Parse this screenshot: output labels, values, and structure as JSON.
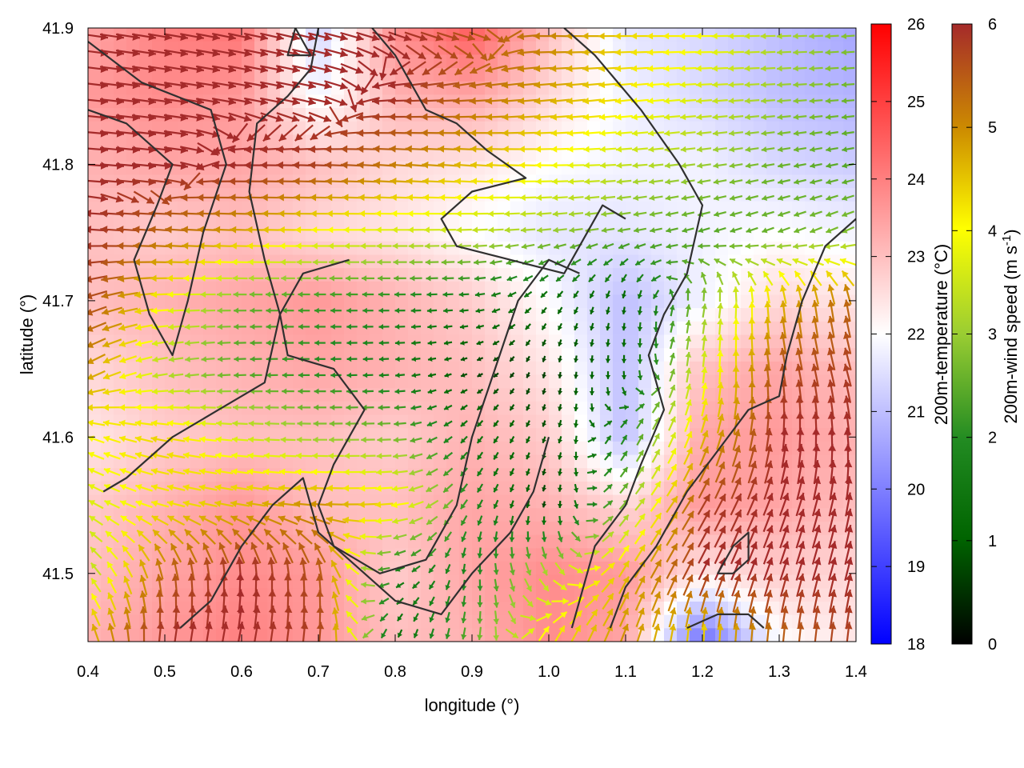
{
  "chart_data": {
    "type": "heatmap",
    "title": "",
    "xlabel": "longitude (°)",
    "ylabel": "latitude (°)",
    "xlim": [
      0.4,
      1.4
    ],
    "ylim": [
      41.45,
      41.9
    ],
    "xticks": [
      0.4,
      0.5,
      0.6,
      0.7,
      0.8,
      0.9,
      1.0,
      1.1,
      1.2,
      1.3,
      1.4
    ],
    "xtick_labels": [
      "0.4",
      "0.5",
      "0.6",
      "0.7",
      "0.8",
      "0.9",
      "1.0",
      "1.1",
      "1.2",
      "1.3",
      "1.4"
    ],
    "yticks": [
      41.5,
      41.6,
      41.7,
      41.8,
      41.9
    ],
    "ytick_labels": [
      "41.5",
      "41.6",
      "41.7",
      "41.8",
      "41.9"
    ],
    "temperature": {
      "label": "200m-temperature (°C)",
      "range": [
        18,
        26
      ],
      "ticks": [
        18,
        19,
        20,
        21,
        22,
        23,
        24,
        25,
        26
      ],
      "tick_labels": [
        "18",
        "19",
        "20",
        "21",
        "22",
        "23",
        "24",
        "25",
        "26"
      ],
      "colormap": [
        "#0000ff",
        "#ffffff",
        "#ff0000"
      ],
      "field": {
        "lon": [
          0.4,
          0.5,
          0.6,
          0.7,
          0.8,
          0.9,
          1.0,
          1.1,
          1.2,
          1.3,
          1.4
        ],
        "lat": [
          41.9,
          41.85,
          41.8,
          41.75,
          41.7,
          41.65,
          41.6,
          41.55,
          41.5,
          41.45
        ],
        "values": [
          [
            23.4,
            24.0,
            24.2,
            21.2,
            23.8,
            24.6,
            23.0,
            21.6,
            21.4,
            21.0,
            20.6
          ],
          [
            23.6,
            23.8,
            23.6,
            21.8,
            23.2,
            23.4,
            22.6,
            21.8,
            21.4,
            21.0,
            20.8
          ],
          [
            23.2,
            23.4,
            23.4,
            23.0,
            22.6,
            22.4,
            22.0,
            21.8,
            21.8,
            21.4,
            21.2
          ],
          [
            23.0,
            22.8,
            23.0,
            22.6,
            22.4,
            22.0,
            21.6,
            21.6,
            21.8,
            22.0,
            21.8
          ],
          [
            23.0,
            23.2,
            23.4,
            23.6,
            23.2,
            22.8,
            22.0,
            21.0,
            21.8,
            22.6,
            22.4
          ],
          [
            22.6,
            23.0,
            23.2,
            23.4,
            23.2,
            23.0,
            22.4,
            21.0,
            23.0,
            23.4,
            23.0
          ],
          [
            22.4,
            22.8,
            23.0,
            23.0,
            22.8,
            23.2,
            22.8,
            21.0,
            23.4,
            23.6,
            23.2
          ],
          [
            22.8,
            23.2,
            23.6,
            23.0,
            23.0,
            23.4,
            23.2,
            22.6,
            23.6,
            23.4,
            23.0
          ],
          [
            23.0,
            23.4,
            23.8,
            23.6,
            22.8,
            23.4,
            23.8,
            23.6,
            22.4,
            22.8,
            22.6
          ],
          [
            23.2,
            23.6,
            24.0,
            23.6,
            23.0,
            23.2,
            23.8,
            23.4,
            19.6,
            22.0,
            22.4
          ]
        ]
      }
    },
    "wind_speed": {
      "label": "200m-wind speed (m s⁻¹)",
      "label_main": "200m-wind speed (m s",
      "label_exp": "-1",
      "label_close": ")",
      "range": [
        0,
        6
      ],
      "ticks": [
        0,
        1,
        2,
        3,
        4,
        5,
        6
      ],
      "tick_labels": [
        "0",
        "1",
        "2",
        "3",
        "4",
        "5",
        "6"
      ],
      "colormap": [
        "#000000",
        "#006400",
        "#228b22",
        "#9acd32",
        "#ffff00",
        "#cd8c00",
        "#a52a2a"
      ],
      "field": {
        "lon": [
          0.4,
          0.5,
          0.6,
          0.7,
          0.8,
          0.9,
          1.0,
          1.1,
          1.2,
          1.3,
          1.4
        ],
        "lat": [
          41.9,
          41.85,
          41.8,
          41.75,
          41.7,
          41.65,
          41.6,
          41.55,
          41.5,
          41.45
        ],
        "speed": [
          [
            6.0,
            6.0,
            6.0,
            6.0,
            6.0,
            5.6,
            5.2,
            4.4,
            4.0,
            3.2,
            2.8
          ],
          [
            6.0,
            6.0,
            6.0,
            6.0,
            6.0,
            5.4,
            4.8,
            4.2,
            3.6,
            3.0,
            2.6
          ],
          [
            6.0,
            6.0,
            6.0,
            5.8,
            5.2,
            4.6,
            4.0,
            3.4,
            3.0,
            2.6,
            2.4
          ],
          [
            6.0,
            5.4,
            4.8,
            4.0,
            3.6,
            3.4,
            3.0,
            2.6,
            2.4,
            2.6,
            2.8
          ],
          [
            5.8,
            4.0,
            2.6,
            2.2,
            2.0,
            1.6,
            1.2,
            1.0,
            2.8,
            4.6,
            5.4
          ],
          [
            5.0,
            3.2,
            2.4,
            2.0,
            1.6,
            0.6,
            0.6,
            1.2,
            3.6,
            5.6,
            5.8
          ],
          [
            4.0,
            4.4,
            3.6,
            3.0,
            2.8,
            1.4,
            0.8,
            2.0,
            4.6,
            6.0,
            6.0
          ],
          [
            3.6,
            4.2,
            4.6,
            5.0,
            4.2,
            2.0,
            0.6,
            2.8,
            5.8,
            6.0,
            6.0
          ],
          [
            3.2,
            5.4,
            6.0,
            5.6,
            1.6,
            1.8,
            3.4,
            4.6,
            6.0,
            6.0,
            6.0
          ],
          [
            4.8,
            6.0,
            6.0,
            5.8,
            1.2,
            2.6,
            4.2,
            5.0,
            4.2,
            5.4,
            5.8
          ]
        ],
        "direction_deg": [
          [
            -8,
            -10,
            -12,
            -14,
            -16,
            -14,
            178,
            180,
            180,
            182,
            184
          ],
          [
            -6,
            -8,
            -10,
            -12,
            182,
            184,
            186,
            186,
            184,
            184,
            184
          ],
          [
            -4,
            -6,
            180,
            178,
            176,
            176,
            180,
            184,
            188,
            190,
            192
          ],
          [
            176,
            176,
            178,
            180,
            180,
            182,
            186,
            190,
            196,
            200,
            204
          ],
          [
            200,
            182,
            180,
            180,
            180,
            184,
            230,
            260,
            80,
            96,
            100
          ],
          [
            210,
            190,
            182,
            180,
            184,
            200,
            260,
            270,
            84,
            100,
            106
          ],
          [
            160,
            170,
            176,
            180,
            182,
            230,
            250,
            60,
            70,
            84,
            96
          ],
          [
            150,
            165,
            170,
            176,
            186,
            240,
            260,
            50,
            60,
            70,
            80
          ],
          [
            130,
            100,
            90,
            95,
            200,
            270,
            300,
            60,
            64,
            72,
            76
          ],
          [
            110,
            80,
            78,
            84,
            250,
            260,
            64,
            70,
            90,
            86,
            84
          ]
        ]
      }
    },
    "contours": [
      [
        [
          0.4,
          41.89
        ],
        [
          0.47,
          41.86
        ],
        [
          0.56,
          41.84
        ],
        [
          0.58,
          41.8
        ],
        [
          0.55,
          41.75
        ],
        [
          0.53,
          41.7
        ],
        [
          0.51,
          41.66
        ],
        [
          0.48,
          41.69
        ],
        [
          0.46,
          41.73
        ],
        [
          0.49,
          41.77
        ],
        [
          0.51,
          41.8
        ],
        [
          0.45,
          41.83
        ],
        [
          0.4,
          41.84
        ]
      ],
      [
        [
          0.7,
          41.9
        ],
        [
          0.69,
          41.87
        ],
        [
          0.66,
          41.85
        ],
        [
          0.62,
          41.83
        ],
        [
          0.61,
          41.78
        ],
        [
          0.63,
          41.73
        ],
        [
          0.65,
          41.69
        ],
        [
          0.63,
          41.64
        ],
        [
          0.57,
          41.62
        ],
        [
          0.51,
          41.6
        ],
        [
          0.45,
          41.57
        ],
        [
          0.42,
          41.56
        ]
      ],
      [
        [
          0.77,
          41.9
        ],
        [
          0.8,
          41.88
        ],
        [
          0.84,
          41.84
        ],
        [
          0.88,
          41.83
        ],
        [
          0.92,
          41.81
        ],
        [
          0.97,
          41.79
        ],
        [
          0.9,
          41.78
        ],
        [
          0.86,
          41.76
        ],
        [
          0.88,
          41.74
        ],
        [
          0.95,
          41.73
        ],
        [
          1.02,
          41.72
        ],
        [
          1.07,
          41.77
        ],
        [
          1.1,
          41.76
        ]
      ],
      [
        [
          1.02,
          41.9
        ],
        [
          1.06,
          41.88
        ],
        [
          1.12,
          41.84
        ],
        [
          1.17,
          41.8
        ],
        [
          1.2,
          41.77
        ],
        [
          1.18,
          41.72
        ],
        [
          1.15,
          41.69
        ],
        [
          1.13,
          41.66
        ],
        [
          1.15,
          41.62
        ],
        [
          1.12,
          41.58
        ],
        [
          1.1,
          41.55
        ],
        [
          1.06,
          41.52
        ],
        [
          1.03,
          41.46
        ]
      ],
      [
        [
          0.74,
          41.73
        ],
        [
          0.68,
          41.72
        ],
        [
          0.65,
          41.69
        ],
        [
          0.66,
          41.66
        ],
        [
          0.72,
          41.65
        ],
        [
          0.76,
          41.62
        ],
        [
          0.72,
          41.58
        ],
        [
          0.7,
          41.55
        ],
        [
          0.72,
          41.52
        ],
        [
          0.78,
          41.5
        ],
        [
          0.84,
          41.51
        ],
        [
          0.88,
          41.55
        ],
        [
          0.9,
          41.6
        ],
        [
          0.93,
          41.65
        ],
        [
          0.96,
          41.7
        ],
        [
          1.0,
          41.73
        ],
        [
          1.04,
          41.72
        ]
      ],
      [
        [
          0.52,
          41.46
        ],
        [
          0.56,
          41.48
        ],
        [
          0.6,
          41.52
        ],
        [
          0.64,
          41.55
        ],
        [
          0.68,
          41.57
        ],
        [
          0.7,
          41.53
        ],
        [
          0.74,
          41.51
        ],
        [
          0.8,
          41.48
        ],
        [
          0.86,
          41.47
        ],
        [
          0.9,
          41.5
        ],
        [
          0.95,
          41.53
        ],
        [
          0.98,
          41.56
        ],
        [
          1.0,
          41.6
        ]
      ],
      [
        [
          1.4,
          41.76
        ],
        [
          1.36,
          41.74
        ],
        [
          1.33,
          41.7
        ],
        [
          1.31,
          41.66
        ],
        [
          1.3,
          41.63
        ],
        [
          1.26,
          41.62
        ],
        [
          1.22,
          41.59
        ],
        [
          1.18,
          41.56
        ],
        [
          1.14,
          41.52
        ],
        [
          1.1,
          41.49
        ],
        [
          1.08,
          41.46
        ]
      ],
      [
        [
          1.18,
          41.46
        ],
        [
          1.22,
          41.47
        ],
        [
          1.26,
          41.47
        ],
        [
          1.28,
          41.46
        ]
      ],
      [
        [
          1.24,
          41.5
        ],
        [
          1.26,
          41.51
        ],
        [
          1.26,
          41.53
        ],
        [
          1.24,
          41.52
        ],
        [
          1.22,
          41.5
        ],
        [
          1.24,
          41.5
        ]
      ],
      [
        [
          0.67,
          41.9
        ],
        [
          0.69,
          41.88
        ],
        [
          0.66,
          41.88
        ],
        [
          0.67,
          41.9
        ]
      ]
    ],
    "grid": false,
    "legend": "none"
  }
}
